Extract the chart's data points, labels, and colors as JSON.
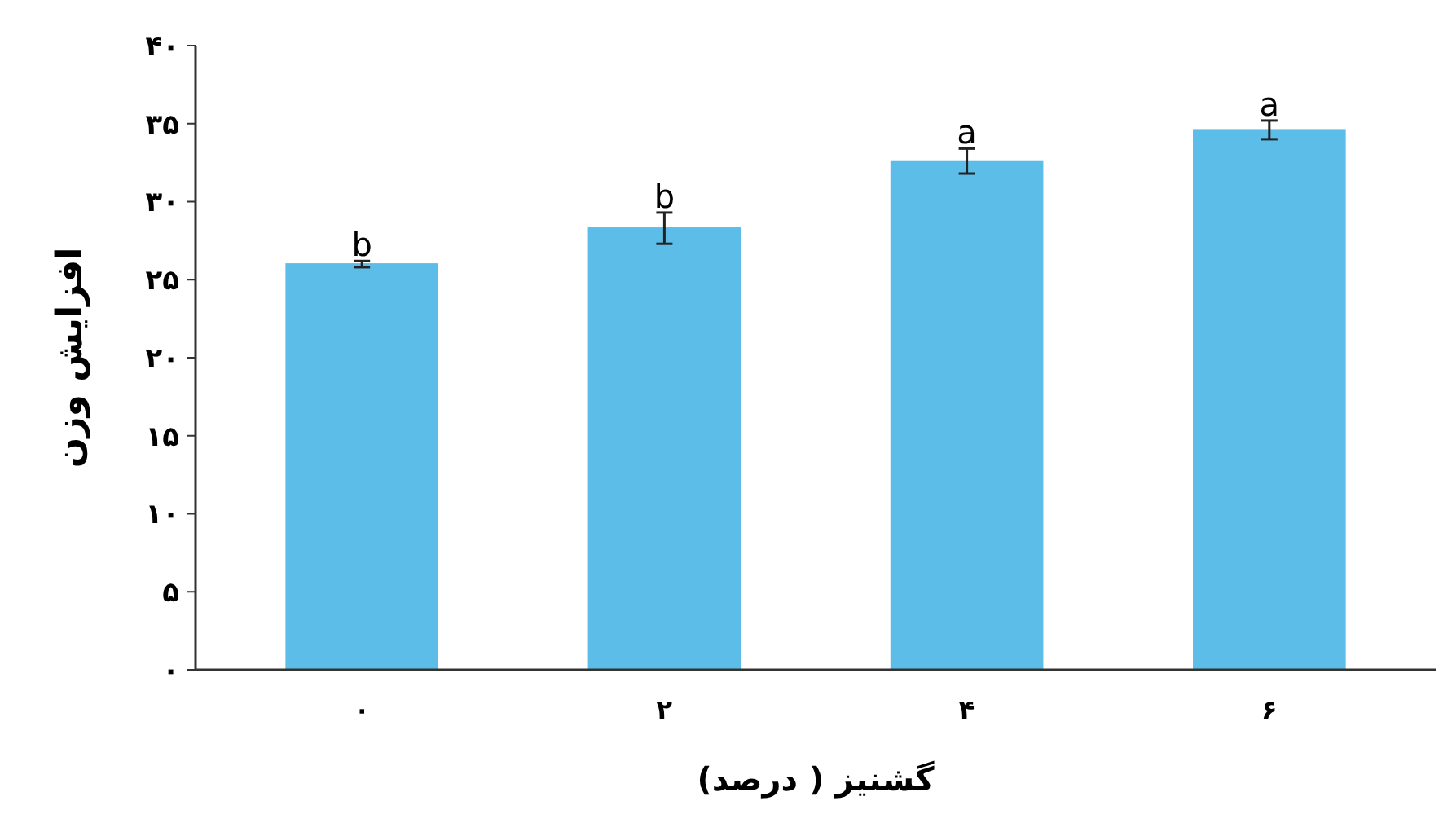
{
  "chart_data": {
    "type": "bar",
    "xlabel": "گشنیز ( درصد)",
    "ylabel": "افزایش وزن",
    "categories": [
      "۰",
      "۲",
      "۴",
      "۶"
    ],
    "values": [
      26.0,
      28.3,
      32.6,
      34.6
    ],
    "errors": [
      0.2,
      1.0,
      0.8,
      0.6
    ],
    "color": "#5bbde8",
    "ylim": [
      0,
      40
    ],
    "yticks": [
      {
        "value": 0,
        "label": "۰"
      },
      {
        "value": 5,
        "label": "۵"
      },
      {
        "value": 10,
        "label": "۱۰"
      },
      {
        "value": 15,
        "label": "۱۵"
      },
      {
        "value": 20,
        "label": "۲۰"
      },
      {
        "value": 25,
        "label": "۲۵"
      },
      {
        "value": 30,
        "label": "۳۰"
      },
      {
        "value": 35,
        "label": "۳۵"
      },
      {
        "value": 40,
        "label": "۴۰"
      }
    ],
    "annotations": [
      {
        "text": "b",
        "x": "۰",
        "y": 26.2
      },
      {
        "text": "b",
        "x": "۲",
        "y": 29.3
      },
      {
        "text": "a",
        "x": "۴",
        "y": 33.4
      },
      {
        "text": "a",
        "x": "۶",
        "y": 35.2
      }
    ]
  }
}
